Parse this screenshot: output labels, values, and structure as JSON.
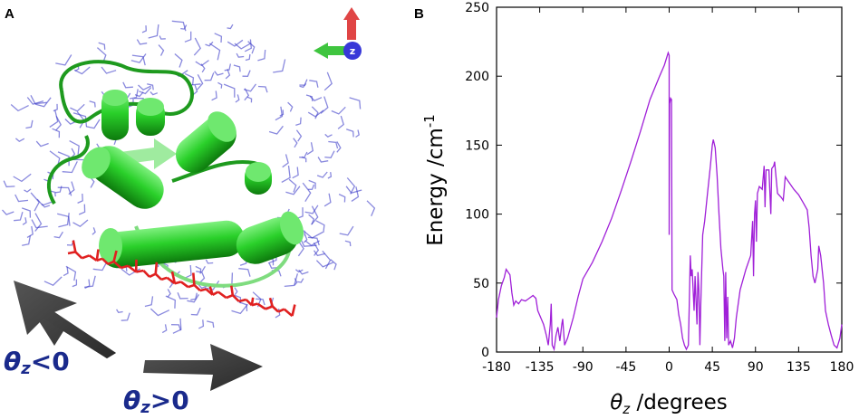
{
  "panel_a": {
    "letter": "A",
    "axis_marker_label": "z",
    "theta_neg": {
      "symbol": "θ",
      "sub": "z",
      "rel": "<0"
    },
    "theta_pos": {
      "symbol": "θ",
      "sub": "z",
      "rel": ">0"
    }
  },
  "panel_b": {
    "letter": "B"
  },
  "colors": {
    "line": "#a020d8",
    "ligand": "#e02020",
    "helix": "#22c022",
    "water": "#3a3ac8",
    "arrow": "#3c3c3c",
    "label": "#1a2a8c"
  },
  "chart_data": {
    "type": "line",
    "xlabel": {
      "sym": "θ",
      "sub": "z",
      "rest": " /degrees"
    },
    "ylabel": {
      "main": "Energy /cm",
      "sup": "-1"
    },
    "xlim": [
      -180,
      180
    ],
    "ylim": [
      0,
      250
    ],
    "xticks": [
      -180,
      -135,
      -90,
      -45,
      0,
      45,
      90,
      135,
      180
    ],
    "yticks": [
      0,
      50,
      100,
      150,
      200,
      250
    ],
    "grid": false,
    "series": [
      {
        "points": [
          [
            -180,
            25
          ],
          [
            -178,
            38
          ],
          [
            -175,
            48
          ],
          [
            -172,
            54
          ],
          [
            -170,
            60
          ],
          [
            -168,
            58
          ],
          [
            -166,
            56
          ],
          [
            -164,
            43
          ],
          [
            -162,
            34
          ],
          [
            -160,
            37
          ],
          [
            -157,
            35
          ],
          [
            -154,
            38
          ],
          [
            -150,
            37
          ],
          [
            -146,
            39
          ],
          [
            -142,
            41
          ],
          [
            -139,
            39
          ],
          [
            -137,
            30
          ],
          [
            -134,
            25
          ],
          [
            -131,
            20
          ],
          [
            -128,
            12
          ],
          [
            -126,
            5
          ],
          [
            -124,
            20
          ],
          [
            -123,
            35
          ],
          [
            -122,
            5
          ],
          [
            -120,
            2
          ],
          [
            -118,
            12
          ],
          [
            -116,
            18
          ],
          [
            -114,
            8
          ],
          [
            -112,
            20
          ],
          [
            -111,
            24
          ],
          [
            -109,
            5
          ],
          [
            -106,
            10
          ],
          [
            -100,
            25
          ],
          [
            -95,
            40
          ],
          [
            -90,
            53
          ],
          [
            -80,
            65
          ],
          [
            -70,
            80
          ],
          [
            -60,
            97
          ],
          [
            -50,
            117
          ],
          [
            -40,
            138
          ],
          [
            -30,
            160
          ],
          [
            -20,
            183
          ],
          [
            -10,
            200
          ],
          [
            -5,
            208
          ],
          [
            -1,
            217
          ],
          [
            0,
            215
          ],
          [
            0,
            85
          ],
          [
            0.5,
            180
          ],
          [
            1.5,
            184
          ],
          [
            2.5,
            183
          ],
          [
            3,
            45
          ],
          [
            5,
            42
          ],
          [
            8,
            38
          ],
          [
            10,
            27
          ],
          [
            12,
            20
          ],
          [
            14,
            10
          ],
          [
            16,
            5
          ],
          [
            18,
            2
          ],
          [
            20,
            5
          ],
          [
            21,
            35
          ],
          [
            22,
            70
          ],
          [
            23,
            55
          ],
          [
            24,
            60
          ],
          [
            26,
            30
          ],
          [
            27,
            55
          ],
          [
            29,
            20
          ],
          [
            30,
            58
          ],
          [
            31,
            45
          ],
          [
            32,
            5
          ],
          [
            33,
            35
          ],
          [
            35,
            85
          ],
          [
            37,
            95
          ],
          [
            40,
            115
          ],
          [
            43,
            135
          ],
          [
            45,
            150
          ],
          [
            46,
            154
          ],
          [
            48,
            148
          ],
          [
            50,
            128
          ],
          [
            52,
            100
          ],
          [
            54,
            75
          ],
          [
            56,
            60
          ],
          [
            57,
            55
          ],
          [
            58,
            8
          ],
          [
            59,
            58
          ],
          [
            60,
            10
          ],
          [
            61,
            40
          ],
          [
            62,
            5
          ],
          [
            64,
            8
          ],
          [
            66,
            3
          ],
          [
            68,
            10
          ],
          [
            70,
            25
          ],
          [
            74,
            45
          ],
          [
            80,
            60
          ],
          [
            85,
            70
          ],
          [
            87,
            95
          ],
          [
            88,
            55
          ],
          [
            89,
            100
          ],
          [
            90,
            110
          ],
          [
            91,
            80
          ],
          [
            92,
            115
          ],
          [
            94,
            120
          ],
          [
            97,
            118
          ],
          [
            99,
            135
          ],
          [
            100,
            105
          ],
          [
            101,
            132
          ],
          [
            104,
            132
          ],
          [
            106,
            100
          ],
          [
            107,
            133
          ],
          [
            109,
            135
          ],
          [
            110,
            138
          ],
          [
            111,
            130
          ],
          [
            113,
            115
          ],
          [
            117,
            112
          ],
          [
            119,
            110
          ],
          [
            121,
            127
          ],
          [
            124,
            124
          ],
          [
            130,
            118
          ],
          [
            135,
            114
          ],
          [
            140,
            108
          ],
          [
            144,
            103
          ],
          [
            146,
            90
          ],
          [
            148,
            70
          ],
          [
            150,
            55
          ],
          [
            152,
            50
          ],
          [
            155,
            60
          ],
          [
            156,
            77
          ],
          [
            158,
            70
          ],
          [
            161,
            50
          ],
          [
            163,
            30
          ],
          [
            166,
            20
          ],
          [
            169,
            12
          ],
          [
            172,
            5
          ],
          [
            175,
            3
          ],
          [
            178,
            10
          ],
          [
            180,
            20
          ]
        ]
      }
    ]
  }
}
